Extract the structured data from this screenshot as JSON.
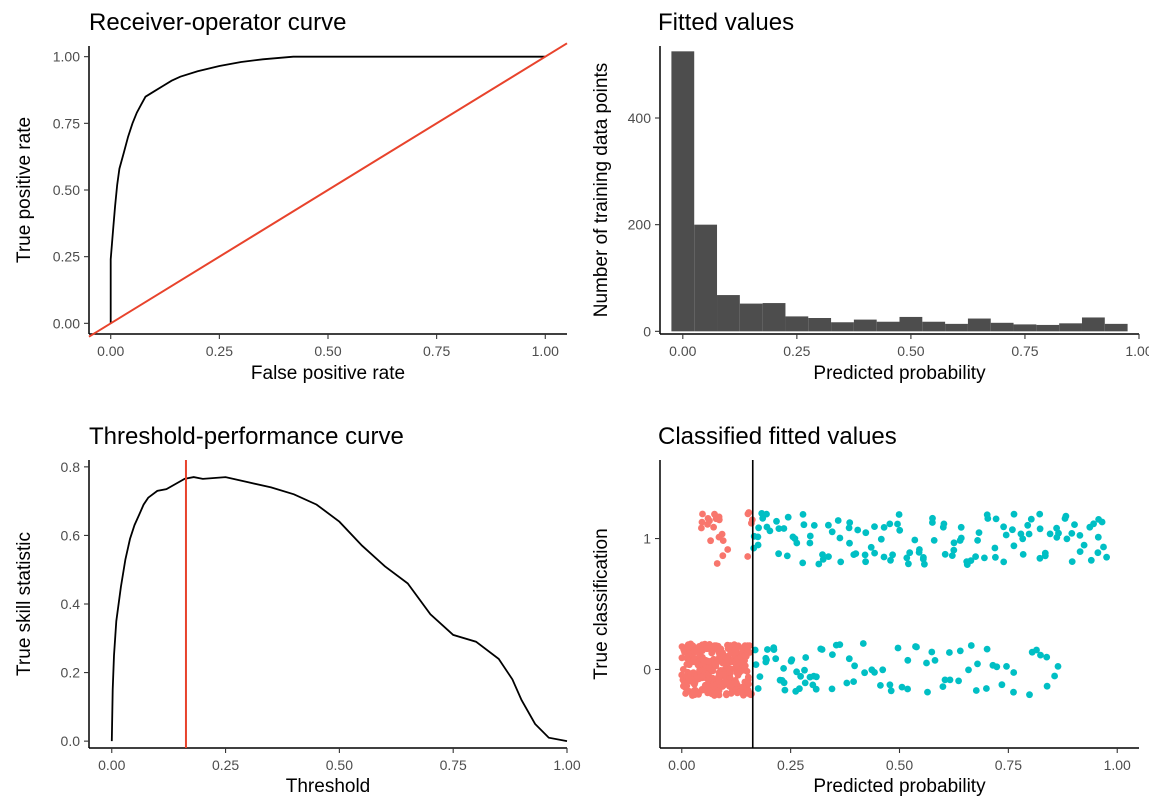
{
  "chart_data": [
    {
      "id": "roc",
      "type": "line",
      "title": "Receiver-operator curve",
      "xlabel": "False positive rate",
      "ylabel": "True positive rate",
      "xlim": [
        -0.05,
        1.05
      ],
      "ylim": [
        -0.04,
        1.04
      ],
      "xticks": [
        "0.00",
        "0.25",
        "0.50",
        "0.75",
        "1.00"
      ],
      "yticks": [
        "0.00",
        "0.25",
        "0.50",
        "0.75",
        "1.00"
      ],
      "grid": false,
      "series": [
        {
          "color": "#000000",
          "points": [
            [
              0,
              0
            ],
            [
              0,
              0.24
            ],
            [
              0.003,
              0.3
            ],
            [
              0.006,
              0.36
            ],
            [
              0.01,
              0.44
            ],
            [
              0.015,
              0.52
            ],
            [
              0.02,
              0.58
            ],
            [
              0.03,
              0.64
            ],
            [
              0.04,
              0.7
            ],
            [
              0.05,
              0.75
            ],
            [
              0.06,
              0.79
            ],
            [
              0.07,
              0.82
            ],
            [
              0.08,
              0.85
            ],
            [
              0.1,
              0.87
            ],
            [
              0.12,
              0.89
            ],
            [
              0.14,
              0.91
            ],
            [
              0.16,
              0.925
            ],
            [
              0.2,
              0.945
            ],
            [
              0.25,
              0.965
            ],
            [
              0.3,
              0.98
            ],
            [
              0.35,
              0.99
            ],
            [
              0.42,
              1.0
            ],
            [
              1.0,
              1.0
            ]
          ]
        },
        {
          "color": "#e8432c",
          "points": [
            [
              -0.05,
              -0.05
            ],
            [
              1.05,
              1.05
            ]
          ]
        }
      ]
    },
    {
      "id": "fitted",
      "type": "bar",
      "title": "Fitted values",
      "xlabel": "Predicted probability",
      "ylabel": "Number of training data points",
      "xlim": [
        -0.05,
        1.0
      ],
      "ylim": [
        -5,
        535
      ],
      "xticks": [
        "0.00",
        "0.25",
        "0.50",
        "0.75",
        "1.00"
      ],
      "yticks": [
        "0",
        "200",
        "400"
      ],
      "grid": false,
      "bar_color": "#4d4d4d",
      "bins": [
        [
          -0.025,
          0.025
        ],
        [
          0.025,
          0.075
        ],
        [
          0.075,
          0.125
        ],
        [
          0.125,
          0.175
        ],
        [
          0.175,
          0.225
        ],
        [
          0.225,
          0.275
        ],
        [
          0.275,
          0.325
        ],
        [
          0.325,
          0.375
        ],
        [
          0.375,
          0.425
        ],
        [
          0.425,
          0.475
        ],
        [
          0.475,
          0.525
        ],
        [
          0.525,
          0.575
        ],
        [
          0.575,
          0.625
        ],
        [
          0.625,
          0.675
        ],
        [
          0.675,
          0.725
        ],
        [
          0.725,
          0.775
        ],
        [
          0.775,
          0.825
        ],
        [
          0.825,
          0.875
        ],
        [
          0.875,
          0.925
        ],
        [
          0.925,
          0.975
        ]
      ],
      "values": [
        525,
        200,
        68,
        52,
        53,
        28,
        25,
        17,
        22,
        18,
        27,
        18,
        14,
        24,
        16,
        13,
        12,
        15,
        26,
        14
      ]
    },
    {
      "id": "threshold",
      "type": "line",
      "title": "Threshold-performance curve",
      "xlabel": "Threshold",
      "ylabel": "True skill statistic",
      "xlim": [
        -0.05,
        1.0
      ],
      "ylim": [
        -0.02,
        0.82
      ],
      "xticks": [
        "0.00",
        "0.25",
        "0.50",
        "0.75",
        "1.00"
      ],
      "yticks": [
        "0.0",
        "0.2",
        "0.4",
        "0.6",
        "0.8"
      ],
      "grid": false,
      "series": [
        {
          "color": "#000000",
          "points": [
            [
              0,
              0.0
            ],
            [
              0.002,
              0.15
            ],
            [
              0.005,
              0.25
            ],
            [
              0.01,
              0.35
            ],
            [
              0.02,
              0.45
            ],
            [
              0.03,
              0.53
            ],
            [
              0.04,
              0.59
            ],
            [
              0.05,
              0.63
            ],
            [
              0.06,
              0.66
            ],
            [
              0.07,
              0.69
            ],
            [
              0.08,
              0.71
            ],
            [
              0.1,
              0.73
            ],
            [
              0.12,
              0.735
            ],
            [
              0.14,
              0.75
            ],
            [
              0.16,
              0.765
            ],
            [
              0.18,
              0.77
            ],
            [
              0.2,
              0.765
            ],
            [
              0.25,
              0.77
            ],
            [
              0.3,
              0.755
            ],
            [
              0.35,
              0.74
            ],
            [
              0.4,
              0.72
            ],
            [
              0.45,
              0.69
            ],
            [
              0.5,
              0.64
            ],
            [
              0.55,
              0.57
            ],
            [
              0.6,
              0.51
            ],
            [
              0.65,
              0.46
            ],
            [
              0.7,
              0.37
            ],
            [
              0.75,
              0.31
            ],
            [
              0.8,
              0.29
            ],
            [
              0.85,
              0.24
            ],
            [
              0.88,
              0.18
            ],
            [
              0.9,
              0.12
            ],
            [
              0.93,
              0.05
            ],
            [
              0.96,
              0.01
            ],
            [
              1.0,
              0.0
            ]
          ]
        },
        {
          "color": "#e8432c",
          "vline": 0.163
        }
      ]
    },
    {
      "id": "classified",
      "type": "scatter",
      "title": "Classified fitted values",
      "xlabel": "Predicted probability",
      "ylabel": "True classification",
      "xlim": [
        -0.05,
        1.05
      ],
      "ylim": [
        -0.6,
        1.6
      ],
      "xticks": [
        "0.00",
        "0.25",
        "0.50",
        "0.75",
        "1.00"
      ],
      "yticks": [
        "0",
        "1"
      ],
      "grid": false,
      "threshold": 0.163,
      "colors": {
        "below": "#f8766d",
        "above": "#00bfc4"
      },
      "groups": [
        {
          "class": 0,
          "x": [
            0.005,
            0.01,
            0.015,
            0.02,
            0.025,
            0.03,
            0.035,
            0.04,
            0.045,
            0.05,
            0.055,
            0.06,
            0.065,
            0.07,
            0.075,
            0.08,
            0.085,
            0.09,
            0.095,
            0.1,
            0.105,
            0.11,
            0.115,
            0.12,
            0.125,
            0.13,
            0.135,
            0.14,
            0.145,
            0.15,
            0.155,
            0.17,
            0.18,
            0.19,
            0.2,
            0.21,
            0.22,
            0.23,
            0.24,
            0.25,
            0.26,
            0.27,
            0.28,
            0.29,
            0.3,
            0.31,
            0.32,
            0.34,
            0.36,
            0.38,
            0.4,
            0.42,
            0.44,
            0.46,
            0.48,
            0.5,
            0.52,
            0.54,
            0.56,
            0.58,
            0.6,
            0.62,
            0.64,
            0.66,
            0.68,
            0.7,
            0.72,
            0.74,
            0.76,
            0.8,
            0.82,
            0.84,
            0.86
          ]
        },
        {
          "class": 1,
          "x": [
            0.05,
            0.06,
            0.07,
            0.08,
            0.09,
            0.1,
            0.15,
            0.16,
            0.17,
            0.18,
            0.2,
            0.22,
            0.24,
            0.26,
            0.28,
            0.3,
            0.32,
            0.34,
            0.36,
            0.38,
            0.4,
            0.42,
            0.44,
            0.46,
            0.48,
            0.5,
            0.52,
            0.54,
            0.56,
            0.58,
            0.6,
            0.62,
            0.64,
            0.66,
            0.68,
            0.7,
            0.72,
            0.74,
            0.76,
            0.78,
            0.8,
            0.82,
            0.84,
            0.86,
            0.88,
            0.9,
            0.92,
            0.94,
            0.96,
            0.97
          ]
        }
      ]
    }
  ]
}
